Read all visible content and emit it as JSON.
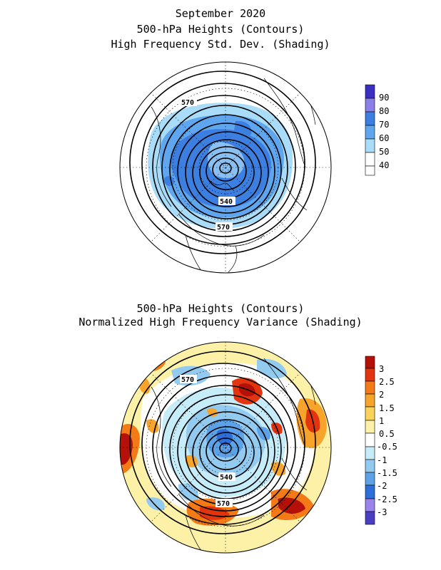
{
  "top_panel": {
    "title_line1": "September 2020",
    "title_line2": "500-hPa Heights (Contours)",
    "title_line3": "High Frequency Std. Dev. (Shading)",
    "contour_labels": [
      "570",
      "540",
      "570"
    ],
    "colorbar": {
      "labels": [
        "90",
        "80",
        "70",
        "60",
        "50",
        "40"
      ],
      "colors": [
        "#3a2fc0",
        "#8a7fe8",
        "#3c7fe0",
        "#5fa6ef",
        "#a9dcf8",
        "#ffffff"
      ]
    }
  },
  "bottom_panel": {
    "title_line1": "500-hPa Heights (Contours)",
    "title_line2": "Normalized High Frequency Variance (Shading)",
    "contour_labels": [
      "570",
      "540",
      "570"
    ],
    "colorbar": {
      "labels": [
        "3",
        "2.5",
        "2",
        "1.5",
        "1",
        "0.5",
        "-0.5",
        "-1",
        "-1.5",
        "-2",
        "-2.5",
        "-3"
      ],
      "colors": [
        "#b5100a",
        "#e2350f",
        "#f47a17",
        "#f7a42c",
        "#fbd25a",
        "#fdf1a8",
        "#ffffff",
        "#c6ecf9",
        "#93cbf0",
        "#5da2e6",
        "#2f6ed9",
        "#9a83ec",
        "#4a3fc4"
      ]
    }
  }
}
